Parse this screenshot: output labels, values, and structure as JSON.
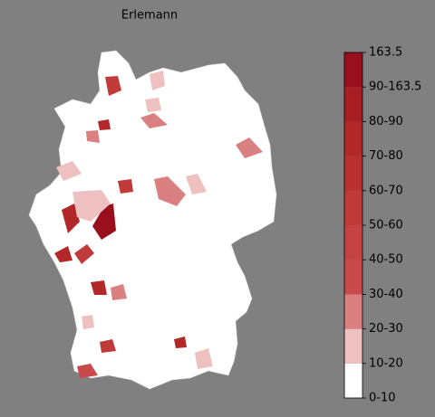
{
  "title": "Erlemann",
  "colorbar": {
    "labels": [
      "0-10",
      "10-20",
      "20-30",
      "30-40",
      "40-50",
      "50-60",
      "60-70",
      "70-80",
      "80-90",
      "90-163.5",
      "163.5"
    ],
    "colors": [
      "#ffffff",
      "#efc0c0",
      "#da8080",
      "#c94a4a",
      "#c54242",
      "#c13a3a",
      "#ba3030",
      "#b22828",
      "#a81e22",
      "#9a0f1e"
    ]
  }
}
